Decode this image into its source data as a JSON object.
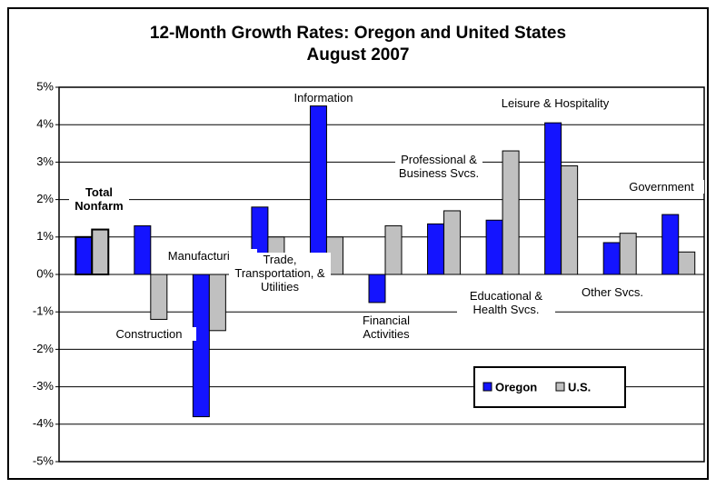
{
  "chart_data": {
    "type": "bar",
    "title": "12-Month Growth Rates: Oregon and United States",
    "subtitle": "August 2007",
    "categories": [
      "Total Nonfarm",
      "Construction",
      "Manufacturing",
      "Trade, Transportation, & Utilities",
      "Information",
      "Financial Activities",
      "Professional & Business Svcs.",
      "Educational & Health Svcs.",
      "Leisure & Hospitality",
      "Other Svcs.",
      "Government"
    ],
    "series": [
      {
        "name": "Oregon",
        "color": "#1414ff",
        "values": [
          1.0,
          1.3,
          -3.8,
          1.8,
          4.5,
          -0.75,
          1.35,
          1.45,
          4.05,
          0.85,
          1.6
        ]
      },
      {
        "name": "U.S.",
        "color": "#c0c0c0",
        "values": [
          1.2,
          -1.2,
          -1.5,
          1.0,
          1.0,
          1.3,
          1.7,
          3.3,
          2.9,
          1.1,
          0.6
        ]
      }
    ],
    "ylim": [
      -5,
      5
    ],
    "yticks": [
      {
        "value": -5,
        "label": "-5%"
      },
      {
        "value": -4,
        "label": "-4%"
      },
      {
        "value": -3,
        "label": "-3%"
      },
      {
        "value": -2,
        "label": "-2%"
      },
      {
        "value": -1,
        "label": "-1%"
      },
      {
        "value": 0,
        "label": "0%"
      },
      {
        "value": 1,
        "label": "1%"
      },
      {
        "value": 2,
        "label": "2%"
      },
      {
        "value": 3,
        "label": "3%"
      },
      {
        "value": 4,
        "label": "4%"
      },
      {
        "value": 5,
        "label": "5%"
      }
    ],
    "grid": true,
    "legend": "lower right"
  }
}
